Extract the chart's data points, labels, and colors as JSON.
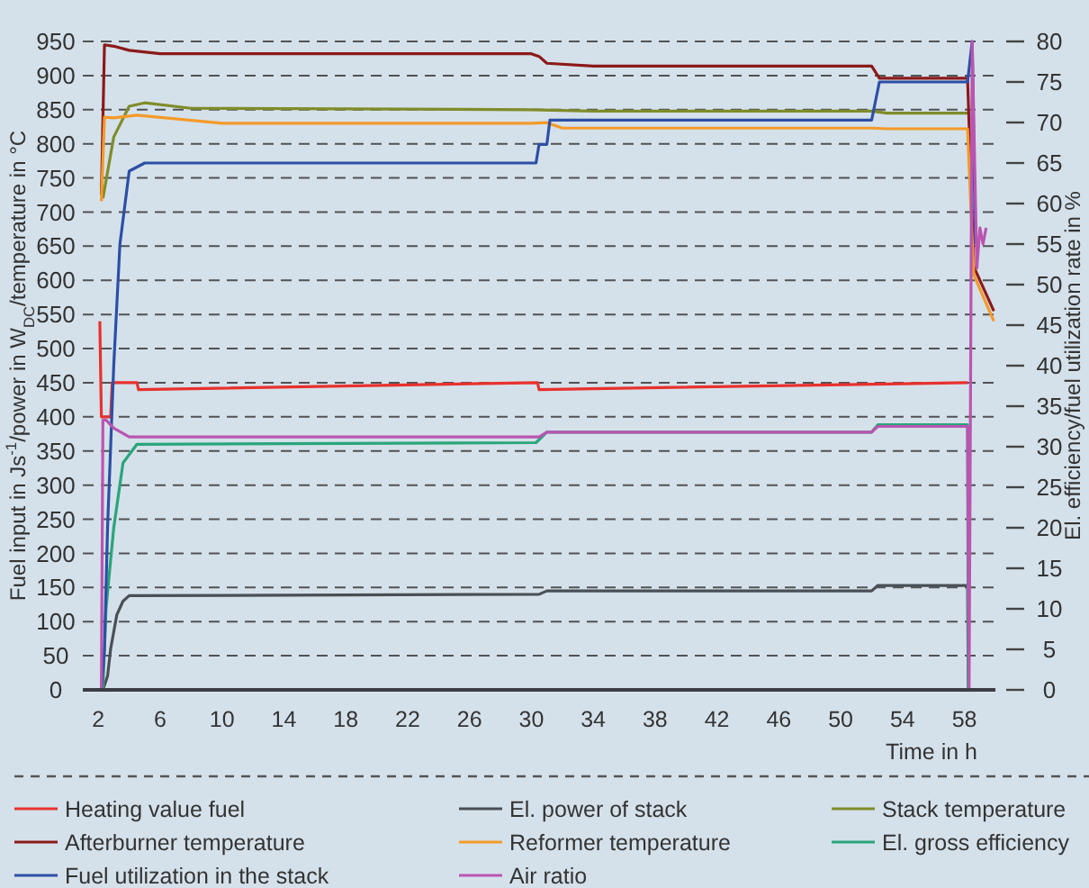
{
  "chart_data": {
    "type": "line",
    "xlabel": "Time in h",
    "ylabel": "Fuel input in Js$^{-1}$/power in W$_{DC}$/temperature in °C",
    "y2label": "El. efficiency/fuel utilization rate in %",
    "xlim": [
      1,
      60
    ],
    "xticks": [
      2,
      6,
      10,
      14,
      18,
      22,
      26,
      30,
      34,
      38,
      42,
      46,
      50,
      54,
      58
    ],
    "ylim": [
      0,
      950
    ],
    "yticks": [
      0,
      50,
      100,
      150,
      200,
      250,
      300,
      350,
      400,
      450,
      500,
      550,
      600,
      650,
      700,
      750,
      800,
      850,
      900,
      950
    ],
    "y2lim": [
      0,
      80
    ],
    "y2ticks": [
      0,
      5,
      10,
      15,
      20,
      25,
      30,
      35,
      40,
      45,
      50,
      55,
      60,
      65,
      70,
      75,
      80
    ],
    "grid": "y",
    "legend": "bottom",
    "series": [
      {
        "name": "Heating value fuel",
        "color": "#e8312e",
        "x": [
          2.1,
          2.2,
          2.8,
          2.9,
          4.5,
          4.6,
          30.4,
          30.5,
          58.2
        ],
        "values": [
          540,
          400,
          400,
          450,
          450,
          440,
          450,
          440,
          450
        ]
      },
      {
        "name": "El. power of stack",
        "color": "#4a4f55",
        "x": [
          2.3,
          2.6,
          2.8,
          3.2,
          3.6,
          4,
          30.5,
          31,
          52,
          52.4,
          58.2,
          58.25
        ],
        "values": [
          0,
          20,
          60,
          110,
          130,
          138,
          140,
          145,
          145,
          153,
          153,
          0
        ]
      },
      {
        "name": "Stack temperature",
        "color": "#7f8c2a",
        "x": [
          2.3,
          3,
          4,
          5,
          8,
          30,
          34,
          52,
          53,
          58.2
        ],
        "values": [
          720,
          810,
          855,
          860,
          852,
          850,
          848,
          848,
          845,
          845
        ]
      },
      {
        "name": "Afterburner temperature",
        "color": "#8b1a1a",
        "x": [
          2.2,
          2.4,
          3,
          4,
          6,
          30,
          30.5,
          31,
          34,
          52,
          52.5,
          58.2,
          58.6,
          59.9
        ],
        "values": [
          725,
          945,
          943,
          937,
          932,
          932,
          928,
          918,
          914,
          914,
          896,
          896,
          620,
          555
        ]
      },
      {
        "name": "Reformer temperature",
        "color": "#f39a2a",
        "x": [
          2.2,
          2.4,
          3,
          4.5,
          10,
          30,
          31,
          32,
          52,
          53,
          58.2,
          58.6,
          59.9
        ],
        "values": [
          716,
          839,
          838,
          842,
          830,
          830,
          831,
          823,
          823,
          822,
          822,
          608,
          540
        ]
      },
      {
        "name": "El. gross efficiency",
        "color": "#2aa57a",
        "axis": "y2",
        "x": [
          2.3,
          2.5,
          3,
          3.6,
          4.5,
          30.3,
          31,
          52,
          52.4,
          58.2,
          58.25
        ],
        "values": [
          0,
          10,
          20,
          28,
          30.3,
          30.5,
          31.8,
          31.8,
          32.7,
          32.7,
          0
        ]
      },
      {
        "name": "Fuel utilization in the stack",
        "color": "#2c4fa6",
        "axis": "y2",
        "x": [
          2.2,
          2.4,
          2.6,
          3,
          3.4,
          4,
          5,
          30.3,
          30.5,
          31,
          31.2,
          52,
          52.5,
          58.2,
          58.5,
          58.7
        ],
        "values": [
          0,
          5,
          20,
          40,
          55,
          64,
          65,
          65,
          67.3,
          67.3,
          70.3,
          70.3,
          75,
          75,
          80,
          55
        ]
      },
      {
        "name": "Air ratio",
        "color": "#b955b0",
        "axis": "y2",
        "x": [
          2.2,
          2.3,
          2.5,
          3,
          4,
          30.5,
          31,
          52,
          52.4,
          58.2,
          58.3,
          58.5,
          58.8,
          59,
          59.2,
          59.4
        ],
        "values": [
          0,
          33.3,
          33.3,
          32.3,
          31.2,
          31.2,
          31.8,
          31.8,
          32.5,
          32.5,
          0,
          80,
          52,
          57,
          55,
          57
        ]
      }
    ]
  }
}
